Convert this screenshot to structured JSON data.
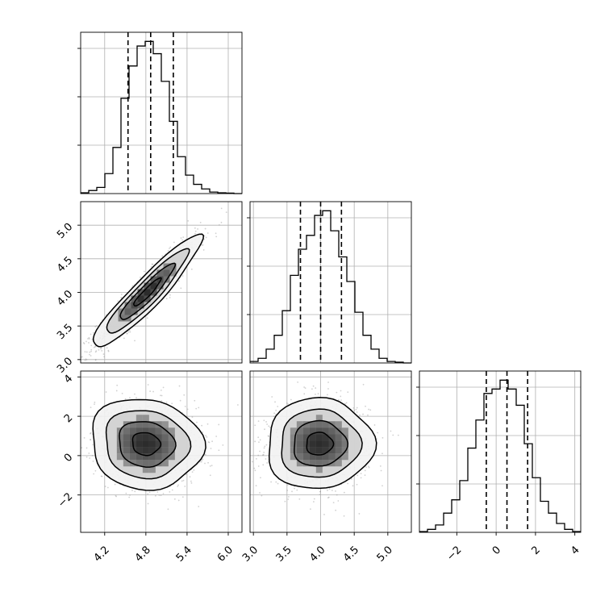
{
  "chart_data": {
    "type": "corner",
    "grid": true,
    "parameters": [
      {
        "range": [
          3.85,
          6.2
        ],
        "ticks": [
          4.2,
          4.8,
          5.4,
          6.0
        ],
        "tick_labels": [
          "4.2",
          "4.8",
          "5.4",
          "6.0"
        ],
        "quantiles": [
          4.54,
          4.87,
          5.2
        ],
        "histogram": {
          "bin_edges": [
            3.85,
            3.9675,
            4.085,
            4.2025,
            4.32,
            4.4375,
            4.555,
            4.6725,
            4.79,
            4.9075,
            5.025,
            5.1425,
            5.26,
            5.3775,
            5.495,
            5.6125,
            5.73,
            5.8475,
            5.965,
            6.0825,
            6.2
          ],
          "counts": [
            0.5,
            2,
            4,
            13,
            30,
            62,
            83,
            96,
            99,
            91,
            73,
            47,
            24,
            12,
            6,
            3,
            1,
            0.5,
            0.3,
            0
          ]
        }
      },
      {
        "range": [
          2.95,
          5.35
        ],
        "ticks": [
          3.0,
          3.5,
          4.0,
          4.5,
          5.0
        ],
        "tick_labels": [
          "3.0",
          "3.5",
          "4.0",
          "4.5",
          "5.0"
        ],
        "quantiles": [
          3.7,
          4.0,
          4.31
        ],
        "histogram": {
          "bin_edges": [
            2.95,
            3.07,
            3.19,
            3.31,
            3.43,
            3.55,
            3.67,
            3.79,
            3.91,
            4.03,
            4.15,
            4.27,
            4.39,
            4.51,
            4.63,
            4.75,
            4.87,
            4.99,
            5.11,
            5.23,
            5.35
          ],
          "counts": [
            1,
            3,
            9,
            18,
            34,
            57,
            74,
            83,
            96,
            99,
            86,
            69,
            53,
            33,
            18,
            9,
            3,
            1,
            0.5,
            0
          ]
        }
      },
      {
        "range": [
          -3.9,
          4.3
        ],
        "ticks": [
          -2,
          0,
          2,
          4
        ],
        "tick_labels": [
          "−2",
          "0",
          "2",
          "4"
        ],
        "quantiles": [
          -0.5,
          0.55,
          1.6
        ],
        "histogram": {
          "bin_edges": [
            -3.9,
            -3.49,
            -3.08,
            -2.67,
            -2.26,
            -1.85,
            -1.44,
            -1.03,
            -0.62,
            -0.21,
            0.2,
            0.61,
            1.02,
            1.43,
            1.84,
            2.25,
            2.66,
            3.07,
            3.48,
            3.89,
            4.3
          ],
          "counts": [
            0.5,
            2,
            5,
            13,
            22,
            35,
            57,
            76,
            94,
            97,
            103,
            97,
            86,
            60,
            37,
            21,
            13,
            6,
            2,
            0.5
          ]
        }
      }
    ],
    "panels_2d": [
      {
        "x_param": 0,
        "y_param": 1,
        "center": [
          4.82,
          4.0
        ],
        "spread": [
          0.36,
          0.38
        ],
        "correlation": 0.93
      },
      {
        "x_param": 0,
        "y_param": 2,
        "center": [
          4.8,
          0.6
        ],
        "spread": [
          0.37,
          1.05
        ],
        "correlation": -0.08
      },
      {
        "x_param": 1,
        "y_param": 2,
        "center": [
          3.98,
          0.6
        ],
        "spread": [
          0.36,
          1.05
        ],
        "correlation": 0.02
      }
    ]
  }
}
